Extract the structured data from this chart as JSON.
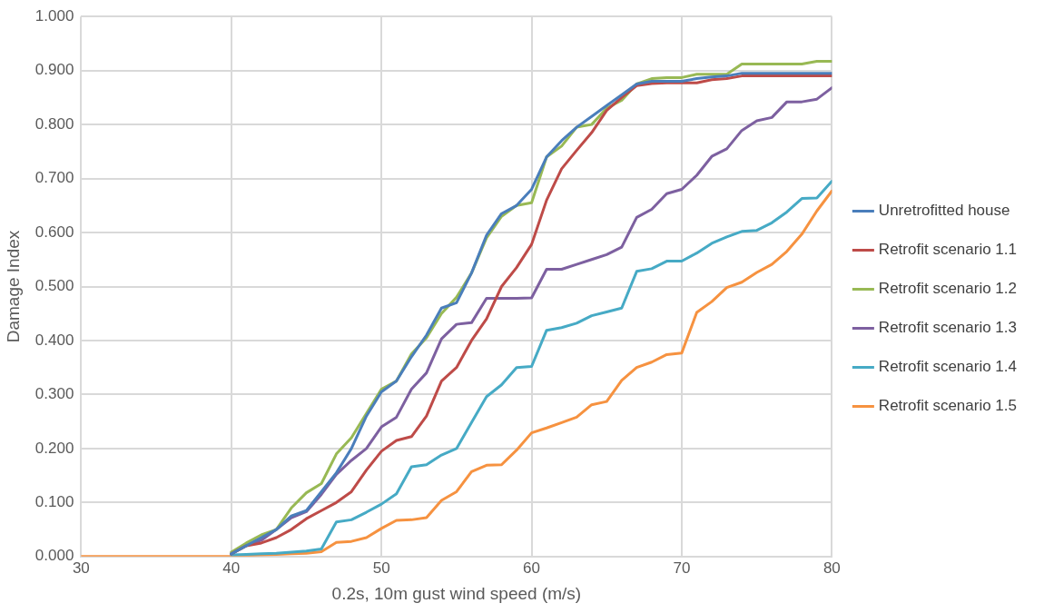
{
  "chart_data": {
    "type": "line",
    "xlabel": "0.2s, 10m gust wind speed (m/s)",
    "ylabel": "Damage Index",
    "x": [
      30,
      31,
      32,
      33,
      34,
      35,
      36,
      37,
      38,
      39,
      40,
      41,
      42,
      43,
      44,
      45,
      46,
      47,
      48,
      49,
      50,
      51,
      52,
      53,
      54,
      55,
      56,
      57,
      58,
      59,
      60,
      61,
      62,
      63,
      64,
      65,
      66,
      67,
      68,
      69,
      70,
      71,
      72,
      73,
      74,
      75,
      76,
      77,
      78,
      79,
      80
    ],
    "xlim": [
      30,
      80
    ],
    "xticks": [
      30,
      40,
      50,
      60,
      70,
      80
    ],
    "ylim": [
      0,
      1
    ],
    "yticks": [
      {
        "value": 0,
        "label": "0.000"
      },
      {
        "value": 0.1,
        "label": "0.100"
      },
      {
        "value": 0.2,
        "label": "0.200"
      },
      {
        "value": 0.3,
        "label": "0.300"
      },
      {
        "value": 0.4,
        "label": "0.400"
      },
      {
        "value": 0.5,
        "label": "0.500"
      },
      {
        "value": 0.6,
        "label": "0.600"
      },
      {
        "value": 0.7,
        "label": "0.700"
      },
      {
        "value": 0.8,
        "label": "0.800"
      },
      {
        "value": 0.9,
        "label": "0.900"
      },
      {
        "value": 1,
        "label": "1.000"
      }
    ],
    "grid": true,
    "legend": "right",
    "marker": "none",
    "line_style": "solid",
    "series": [
      {
        "name": "Unretrofitted house",
        "color": "#4a7ebb",
        "values": [
          null,
          null,
          null,
          null,
          null,
          null,
          null,
          null,
          null,
          null,
          0.005,
          0.02,
          0.035,
          0.05,
          0.075,
          0.085,
          0.12,
          0.155,
          0.2,
          0.26,
          0.305,
          0.325,
          0.37,
          0.41,
          0.46,
          0.47,
          0.525,
          0.595,
          0.635,
          0.65,
          0.68,
          0.74,
          0.77,
          0.795,
          0.815,
          0.835,
          0.855,
          0.875,
          0.88,
          0.88,
          0.88,
          0.885,
          0.888,
          0.89,
          0.895,
          0.895,
          0.895,
          0.895,
          0.895,
          0.895,
          0.895
        ]
      },
      {
        "name": "Retrofit scenario 1.1",
        "color": "#be4b48",
        "values": [
          null,
          null,
          null,
          null,
          null,
          null,
          null,
          null,
          null,
          null,
          0.005,
          0.02,
          0.025,
          0.035,
          0.05,
          0.07,
          0.085,
          0.1,
          0.12,
          0.16,
          0.195,
          0.215,
          0.222,
          0.26,
          0.325,
          0.35,
          0.4,
          0.44,
          0.5,
          0.535,
          0.578,
          0.66,
          0.718,
          0.752,
          0.785,
          0.826,
          0.85,
          0.872,
          0.876,
          0.877,
          0.877,
          0.877,
          0.883,
          0.885,
          0.89,
          0.89,
          0.89,
          0.89,
          0.89,
          0.89,
          0.89
        ]
      },
      {
        "name": "Retrofit scenario 1.2",
        "color": "#98b954",
        "values": [
          null,
          null,
          null,
          null,
          null,
          null,
          null,
          null,
          null,
          null,
          0.008,
          0.025,
          0.04,
          0.05,
          0.09,
          0.118,
          0.135,
          0.19,
          0.22,
          0.265,
          0.31,
          0.325,
          0.375,
          0.405,
          0.45,
          0.48,
          0.525,
          0.59,
          0.63,
          0.65,
          0.655,
          0.74,
          0.76,
          0.795,
          0.8,
          0.83,
          0.845,
          0.875,
          0.885,
          0.887,
          0.887,
          0.893,
          0.893,
          0.893,
          0.912,
          0.912,
          0.912,
          0.912,
          0.912,
          0.917,
          0.917
        ]
      },
      {
        "name": "Retrofit scenario 1.3",
        "color": "#7d60a0",
        "values": [
          null,
          null,
          null,
          null,
          null,
          null,
          null,
          null,
          null,
          null,
          0.005,
          0.02,
          0.03,
          0.05,
          0.072,
          0.083,
          0.115,
          0.152,
          0.178,
          0.2,
          0.24,
          0.258,
          0.31,
          0.34,
          0.403,
          0.43,
          0.433,
          0.478,
          0.478,
          0.478,
          0.479,
          0.532,
          0.532,
          0.541,
          0.55,
          0.559,
          0.573,
          0.628,
          0.643,
          0.672,
          0.68,
          0.706,
          0.741,
          0.755,
          0.789,
          0.807,
          0.813,
          0.842,
          0.842,
          0.847,
          0.868
        ]
      },
      {
        "name": "Retrofit scenario 1.4",
        "color": "#46aac5",
        "values": [
          null,
          null,
          null,
          null,
          null,
          null,
          null,
          null,
          null,
          null,
          0.003,
          0.004,
          0.005,
          0.006,
          0.008,
          0.01,
          0.014,
          0.064,
          0.068,
          0.082,
          0.097,
          0.116,
          0.166,
          0.17,
          0.188,
          0.2,
          0.248,
          0.296,
          0.318,
          0.35,
          0.352,
          0.419,
          0.424,
          0.432,
          0.446,
          0.453,
          0.46,
          0.528,
          0.533,
          0.547,
          0.547,
          0.562,
          0.58,
          0.592,
          0.602,
          0.604,
          0.618,
          0.638,
          0.663,
          0.664,
          0.695
        ]
      },
      {
        "name": "Retrofit scenario 1.5",
        "color": "#f69240",
        "values": [
          0,
          0,
          0,
          0,
          0,
          0,
          0,
          0,
          0,
          0,
          0,
          0.002,
          0.003,
          0.004,
          0.005,
          0.006,
          0.009,
          0.026,
          0.028,
          0.035,
          0.052,
          0.067,
          0.068,
          0.072,
          0.104,
          0.12,
          0.157,
          0.169,
          0.17,
          0.197,
          0.229,
          0.238,
          0.248,
          0.258,
          0.281,
          0.287,
          0.326,
          0.35,
          0.36,
          0.374,
          0.377,
          0.452,
          0.472,
          0.498,
          0.508,
          0.526,
          0.541,
          0.565,
          0.597,
          0.64,
          0.677
        ]
      }
    ]
  }
}
